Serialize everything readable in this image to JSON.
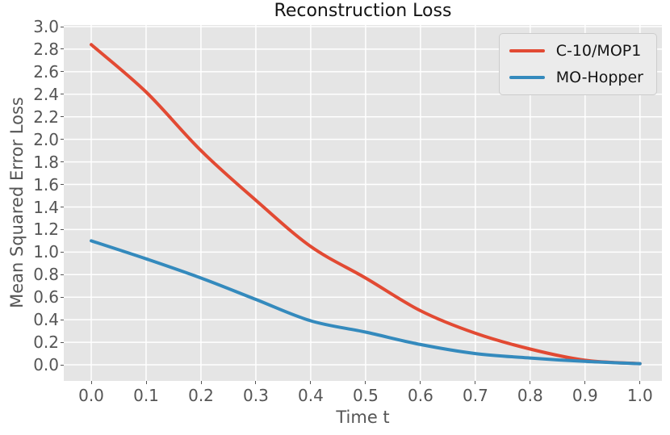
{
  "chart_data": {
    "type": "line",
    "title": "Reconstruction Loss",
    "xlabel": "Time t",
    "ylabel": "Mean Squared Error Loss",
    "x": [
      0.0,
      0.1,
      0.2,
      0.3,
      0.4,
      0.5,
      0.6,
      0.7,
      0.8,
      0.9,
      1.0
    ],
    "series": [
      {
        "name": "C-10/MOP1",
        "color": "#E24A33",
        "values": [
          2.84,
          2.42,
          1.9,
          1.46,
          1.05,
          0.77,
          0.48,
          0.28,
          0.14,
          0.04,
          0.01
        ]
      },
      {
        "name": "MO-Hopper",
        "color": "#348ABD",
        "values": [
          1.1,
          0.94,
          0.77,
          0.58,
          0.39,
          0.29,
          0.18,
          0.1,
          0.06,
          0.03,
          0.01
        ]
      }
    ],
    "xlim": [
      -0.05,
      1.04
    ],
    "ylim": [
      -0.143,
      3.014
    ],
    "xticks": {
      "values": [
        0.0,
        0.1,
        0.2,
        0.3,
        0.4,
        0.5,
        0.6,
        0.7,
        0.8,
        0.9,
        1.0
      ],
      "labels": [
        "0.0",
        "0.1",
        "0.2",
        "0.3",
        "0.4",
        "0.5",
        "0.6",
        "0.7",
        "0.8",
        "0.9",
        "1.0"
      ]
    },
    "yticks": {
      "values": [
        0.0,
        0.2,
        0.4,
        0.6,
        0.8,
        1.0,
        1.2,
        1.4,
        1.6,
        1.8,
        2.0,
        2.2,
        2.4,
        2.6,
        2.8,
        3.0
      ],
      "labels": [
        "0.0",
        "0.2",
        "0.4",
        "0.6",
        "0.8",
        "1.0",
        "1.2",
        "1.4",
        "1.6",
        "1.8",
        "2.0",
        "2.2",
        "2.4",
        "2.6",
        "2.8",
        "3.0"
      ]
    },
    "grid": true,
    "legend_position": "upper right",
    "line_width": 4,
    "style": {
      "plot_bg": "#E5E5E5",
      "grid_color": "#FFFFFF",
      "tick_color": "#555555",
      "text_color": "#555555",
      "title_color": "#141414",
      "legend_bg": "#EBEBEB",
      "legend_border": "#CCCCCC"
    }
  }
}
